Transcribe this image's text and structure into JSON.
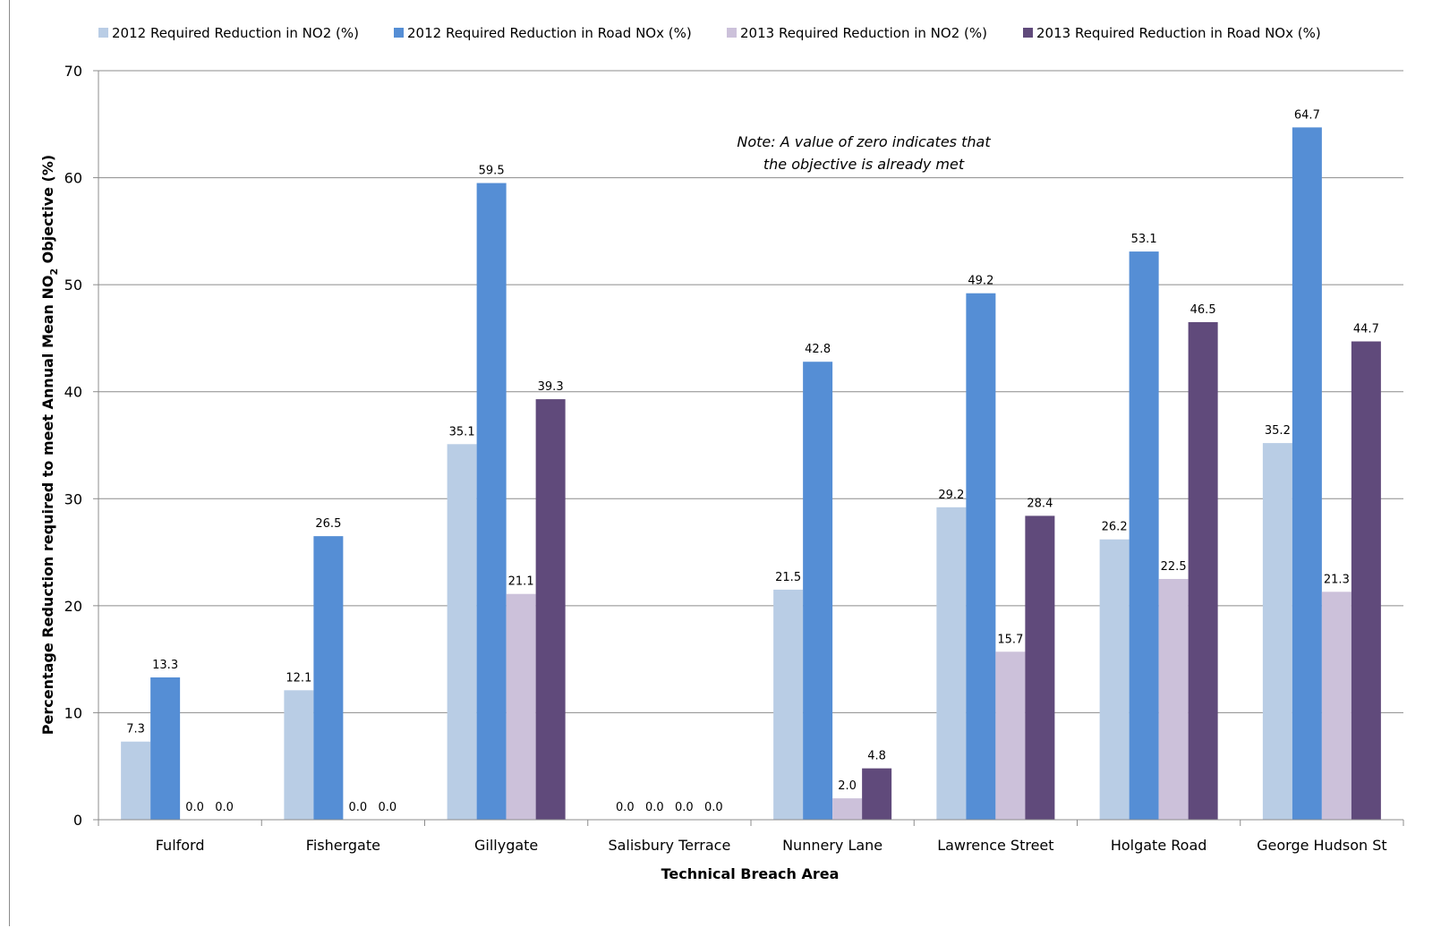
{
  "chart_data": {
    "type": "bar",
    "title": "",
    "xlabel": "Technical Breach Area",
    "ylabel_parts": {
      "before": "Percentage Reduction required to meet Annual Mean NO",
      "sub": "2",
      "after": " Objective (%)"
    },
    "ylim": [
      0,
      70
    ],
    "yticks": [
      0,
      10,
      20,
      30,
      40,
      50,
      60,
      70
    ],
    "grid": true,
    "legend_position": "top",
    "categories": [
      "Fulford",
      "Fishergate",
      "Gillygate",
      "Salisbury Terrace",
      "Nunnery Lane",
      "Lawrence Street",
      "Holgate Road",
      "George Hudson St"
    ],
    "series": [
      {
        "name": "2012 Required Reduction in NO2 (%)",
        "color": "#b9cde5",
        "values": [
          7.3,
          12.1,
          35.1,
          0.0,
          21.5,
          29.2,
          26.2,
          35.2
        ],
        "labels": [
          "7.3",
          "12.1",
          "35.1",
          "0.0",
          "21.5",
          "29.2",
          "26.2",
          "35.2"
        ]
      },
      {
        "name": "2012 Required Reduction in Road NOx (%)",
        "color": "#558ed5",
        "values": [
          13.3,
          26.5,
          59.5,
          0.0,
          42.8,
          49.2,
          53.1,
          64.7
        ],
        "labels": [
          "13.3",
          "26.5",
          "59.5",
          "0.0",
          "42.8",
          "49.2",
          "53.1",
          "64.7"
        ]
      },
      {
        "name": "2013 Required Reduction in NO2 (%)",
        "color": "#ccc1da",
        "values": [
          0.0,
          0.0,
          21.1,
          0.0,
          2.0,
          15.7,
          22.5,
          21.3
        ],
        "labels": [
          "0.0",
          "0.0",
          "21.1",
          "0.0",
          "2.0",
          "15.7",
          "22.5",
          "21.3"
        ]
      },
      {
        "name": "2013 Required Reduction in Road NOx (%)",
        "color": "#604a7b",
        "values": [
          0.0,
          0.0,
          39.3,
          0.0,
          4.8,
          28.4,
          46.5,
          44.7
        ],
        "labels": [
          "0.0",
          "0.0",
          "39.3",
          "0.0",
          "4.8",
          "28.4",
          "46.5",
          "44.7"
        ]
      }
    ],
    "annotations": [
      "Note: A value of zero indicates that",
      "the objective is already met"
    ]
  }
}
